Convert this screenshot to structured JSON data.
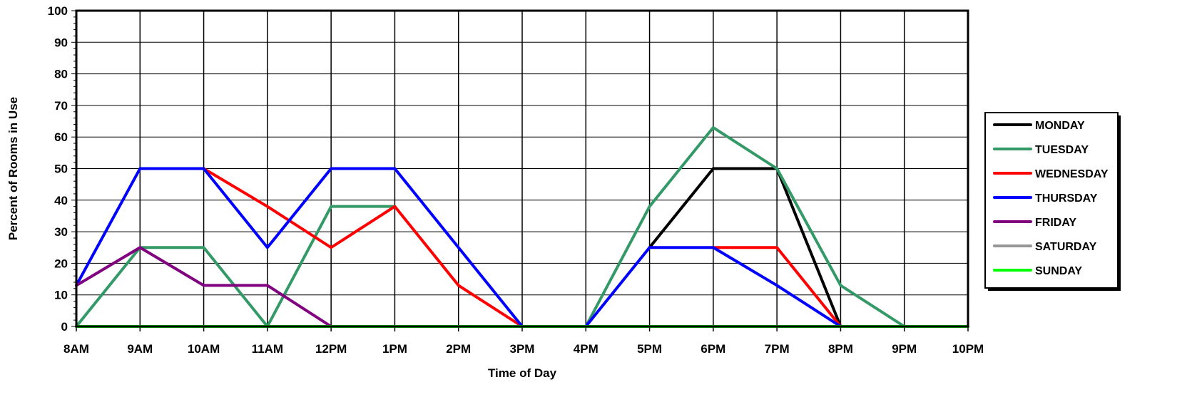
{
  "chart_data": {
    "type": "line",
    "xlabel": "Time of Day",
    "ylabel": "Percent of Rooms in Use",
    "ylim": [
      0,
      100
    ],
    "yticks": [
      0,
      10,
      20,
      30,
      40,
      50,
      60,
      70,
      80,
      90,
      100
    ],
    "categories": [
      "8AM",
      "9AM",
      "10AM",
      "11AM",
      "12PM",
      "1PM",
      "2PM",
      "3PM",
      "4PM",
      "5PM",
      "6PM",
      "7PM",
      "8PM",
      "9PM",
      "10PM"
    ],
    "grid": true,
    "legend_position": "right",
    "series": [
      {
        "name": "MONDAY",
        "color": "#000000",
        "values": [
          null,
          null,
          null,
          null,
          null,
          null,
          null,
          null,
          null,
          25,
          50,
          50,
          0,
          null,
          null
        ]
      },
      {
        "name": "TUESDAY",
        "color": "#339966",
        "values": [
          0,
          25,
          25,
          0,
          38,
          38,
          null,
          null,
          0,
          38,
          63,
          50,
          13,
          0,
          null
        ]
      },
      {
        "name": "WEDNESDAY",
        "color": "#ff0000",
        "values": [
          null,
          null,
          50,
          38,
          25,
          38,
          13,
          0,
          null,
          null,
          25,
          25,
          0,
          null,
          null
        ]
      },
      {
        "name": "THURSDAY",
        "color": "#0000ff",
        "values": [
          13,
          50,
          50,
          25,
          50,
          50,
          25,
          0,
          0,
          25,
          25,
          13,
          0,
          null,
          null
        ]
      },
      {
        "name": "FRIDAY",
        "color": "#800080",
        "values": [
          13,
          25,
          13,
          13,
          0,
          null,
          null,
          null,
          null,
          null,
          null,
          null,
          null,
          null,
          null
        ]
      },
      {
        "name": "SATURDAY",
        "color": "#969696",
        "values": [
          0,
          0,
          0,
          0,
          0,
          0,
          0,
          0,
          0,
          0,
          0,
          0,
          0,
          0,
          0
        ]
      },
      {
        "name": "SUNDAY",
        "color": "#00ff00",
        "values": [
          0,
          0,
          0,
          0,
          0,
          0,
          0,
          0,
          0,
          0,
          0,
          0,
          0,
          0,
          0
        ]
      }
    ]
  }
}
